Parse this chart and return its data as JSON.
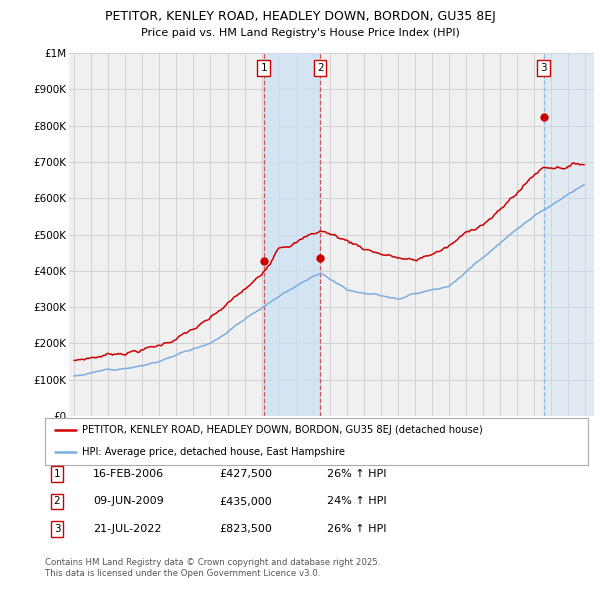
{
  "title": "PETITOR, KENLEY ROAD, HEADLEY DOWN, BORDON, GU35 8EJ",
  "subtitle": "Price paid vs. HM Land Registry's House Price Index (HPI)",
  "ylim": [
    0,
    1000000
  ],
  "yticks": [
    0,
    100000,
    200000,
    300000,
    400000,
    500000,
    600000,
    700000,
    800000,
    900000,
    1000000
  ],
  "ytick_labels": [
    "£0",
    "£100K",
    "£200K",
    "£300K",
    "£400K",
    "£500K",
    "£600K",
    "£700K",
    "£800K",
    "£900K",
    "£1M"
  ],
  "x_start_year": 1995,
  "x_end_year": 2025,
  "red_line_color": "#cc0000",
  "blue_line_color": "#7aade0",
  "sale1_x": 2006.12,
  "sale2_x": 2009.44,
  "sale3_x": 2022.55,
  "sale_prices": [
    427500,
    435000,
    823500
  ],
  "sale_labels": [
    "1",
    "2",
    "3"
  ],
  "sale_info": [
    {
      "label": "1",
      "date": "16-FEB-2006",
      "price": "£427,500",
      "hpi": "26% ↑ HPI"
    },
    {
      "label": "2",
      "date": "09-JUN-2009",
      "price": "£435,000",
      "hpi": "24% ↑ HPI"
    },
    {
      "label": "3",
      "date": "21-JUL-2022",
      "price": "£823,500",
      "hpi": "26% ↑ HPI"
    }
  ],
  "legend_line1": "PETITOR, KENLEY ROAD, HEADLEY DOWN, BORDON, GU35 8EJ (detached house)",
  "legend_line2": "HPI: Average price, detached house, East Hampshire",
  "footnote": "Contains HM Land Registry data © Crown copyright and database right 2025.\nThis data is licensed under the Open Government Licence v3.0.",
  "background_color": "#ffffff",
  "plot_bg_color": "#f0f0f0",
  "grid_color": "#cccccc",
  "shade_color": "#cce0f5"
}
